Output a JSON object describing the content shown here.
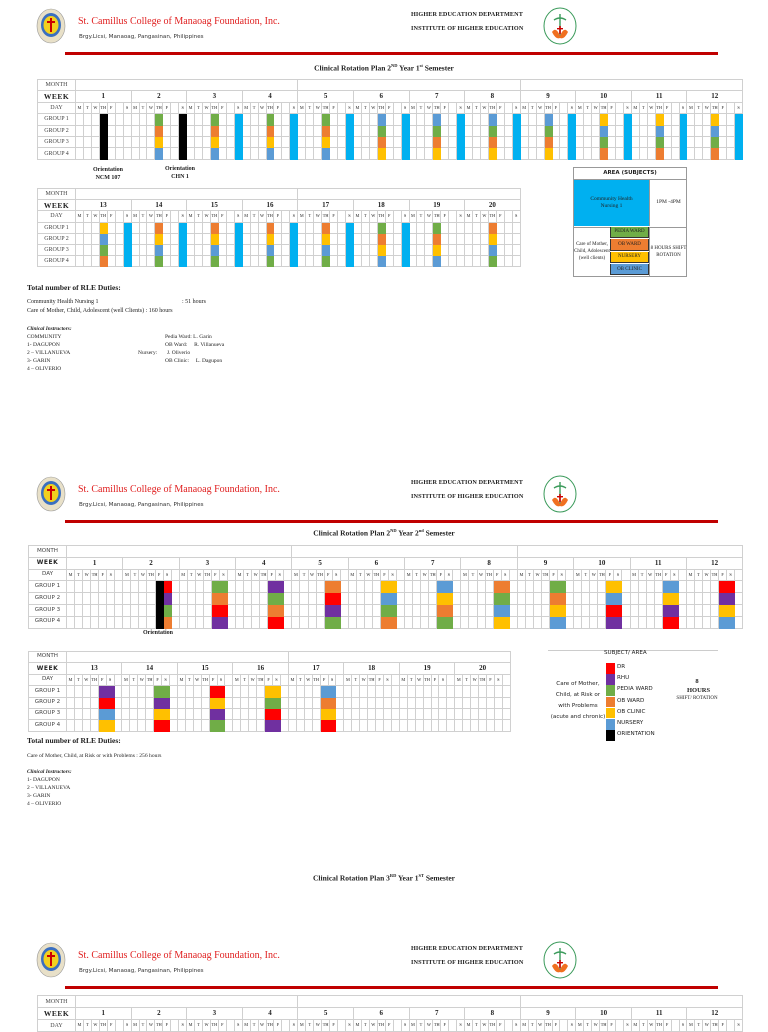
{
  "header": {
    "college_name": "St. Camillus College of Manaoag Foundation, Inc.",
    "address": "Brgy.Licsi, Manaoag, Pangasinan, Philippines",
    "department": "HIGHER EDUCATION DEPARTMENT",
    "institute": "INSTITUTE OF HIGHER EDUCATION"
  },
  "palette": {
    "r": "#ff0000",
    "p": "#7030a0",
    "g": "#70ad47",
    "o": "#ed7d31",
    "y": "#ffc000",
    "b": "#5b9bd5",
    "c": "#00b0f0",
    "k": "#000000"
  },
  "row_labels": {
    "month": "MONTH",
    "week": "WEEK",
    "day": "DAY"
  },
  "section1": {
    "title_main": "Clinical Rotation Plan 2",
    "title_sup1": "ND",
    "title_mid": " Year 1",
    "title_sup2": "st",
    "title_end": " Semester",
    "table_a": {
      "weeks": [
        "1",
        "2",
        "3",
        "4",
        "5",
        "6",
        "7",
        "8",
        "9",
        "10",
        "11",
        "12"
      ],
      "days": [
        "M",
        "T",
        "W",
        "TH",
        "F",
        "",
        "S"
      ],
      "color_days": [
        3,
        6
      ],
      "groups": [
        {
          "label": "GROUP 1",
          "cells": [
            [
              "k",
              ""
            ],
            [
              "g",
              "k"
            ],
            [
              "g",
              "c"
            ],
            [
              "g",
              "c"
            ],
            [
              "g",
              "c"
            ],
            [
              "b",
              "c"
            ],
            [
              "b",
              "c"
            ],
            [
              "b",
              "c"
            ],
            [
              "b",
              "c"
            ],
            [
              "y",
              "c"
            ],
            [
              "y",
              "c"
            ],
            [
              "y",
              "c"
            ]
          ]
        },
        {
          "label": "GROUP 2",
          "cells": [
            [
              "k",
              ""
            ],
            [
              "o",
              "k"
            ],
            [
              "o",
              "c"
            ],
            [
              "o",
              "c"
            ],
            [
              "o",
              "c"
            ],
            [
              "g",
              "c"
            ],
            [
              "g",
              "c"
            ],
            [
              "g",
              "c"
            ],
            [
              "g",
              "c"
            ],
            [
              "b",
              "c"
            ],
            [
              "b",
              "c"
            ],
            [
              "b",
              "c"
            ]
          ]
        },
        {
          "label": "GROUP 3",
          "cells": [
            [
              "k",
              ""
            ],
            [
              "y",
              "k"
            ],
            [
              "y",
              "c"
            ],
            [
              "y",
              "c"
            ],
            [
              "y",
              "c"
            ],
            [
              "o",
              "c"
            ],
            [
              "o",
              "c"
            ],
            [
              "o",
              "c"
            ],
            [
              "o",
              "c"
            ],
            [
              "g",
              "c"
            ],
            [
              "g",
              "c"
            ],
            [
              "g",
              "c"
            ]
          ]
        },
        {
          "label": "GROUP 4",
          "cells": [
            [
              "k",
              ""
            ],
            [
              "b",
              "k"
            ],
            [
              "b",
              "c"
            ],
            [
              "b",
              "c"
            ],
            [
              "b",
              "c"
            ],
            [
              "y",
              "c"
            ],
            [
              "y",
              "c"
            ],
            [
              "y",
              "c"
            ],
            [
              "y",
              "c"
            ],
            [
              "o",
              "c"
            ],
            [
              "o",
              "c"
            ],
            [
              "o",
              "c"
            ]
          ]
        }
      ]
    },
    "orientation_1": {
      "line1": "Orientation",
      "line2": "NCM 107"
    },
    "orientation_2": {
      "line1": "Orientation",
      "line2": "CHN 1"
    },
    "table_b": {
      "weeks": [
        "13",
        "14",
        "15",
        "16",
        "17",
        "18",
        "19",
        "20"
      ],
      "days": [
        "M",
        "T",
        "W",
        "TH",
        "F",
        "",
        "S"
      ],
      "color_days": [
        3,
        6
      ],
      "groups": [
        {
          "label": "GROUP 1",
          "cells": [
            [
              "y",
              "c"
            ],
            [
              "o",
              "c"
            ],
            [
              "o",
              "c"
            ],
            [
              "o",
              "c"
            ],
            [
              "o",
              "c"
            ],
            [
              "g",
              "c"
            ],
            [
              "g",
              ""
            ],
            [
              "o",
              ""
            ]
          ]
        },
        {
          "label": "GROUP 2",
          "cells": [
            [
              "b",
              "c"
            ],
            [
              "y",
              "c"
            ],
            [
              "y",
              "c"
            ],
            [
              "y",
              "c"
            ],
            [
              "y",
              "c"
            ],
            [
              "o",
              "c"
            ],
            [
              "o",
              ""
            ],
            [
              "y",
              ""
            ]
          ]
        },
        {
          "label": "GROUP 3",
          "cells": [
            [
              "g",
              "c"
            ],
            [
              "b",
              "c"
            ],
            [
              "b",
              "c"
            ],
            [
              "b",
              "c"
            ],
            [
              "b",
              "c"
            ],
            [
              "y",
              "c"
            ],
            [
              "y",
              ""
            ],
            [
              "b",
              ""
            ]
          ]
        },
        {
          "label": "GROUP 4",
          "cells": [
            [
              "o",
              "c"
            ],
            [
              "g",
              "c"
            ],
            [
              "g",
              "c"
            ],
            [
              "g",
              "c"
            ],
            [
              "g",
              "c"
            ],
            [
              "b",
              "c"
            ],
            [
              "b",
              ""
            ],
            [
              "g",
              ""
            ]
          ]
        }
      ]
    },
    "legend": {
      "header": "AREA (SUBJECTS)",
      "chn": "Community Health Nursing 1",
      "chn_time": "1PM -4PM",
      "cmca": "Care of Mother, Child, Adolescent (well clients)",
      "areas": [
        {
          "label": "PEDIA WARD",
          "color": "g"
        },
        {
          "label": "OB WARD",
          "color": "o"
        },
        {
          "label": "NURSERY",
          "color": "y"
        },
        {
          "label": "OB CLINIC",
          "color": "b"
        }
      ],
      "shift": "8 HOURS SHIFT ROTATION"
    },
    "totals_heading": "Total number of RLE Duties:",
    "totals": [
      {
        "subject": "Community Health Nursing 1",
        "hours": ": 51 hours"
      },
      {
        "subject": "Care of Mother, Child, Adolescent (well Clients)",
        "hours": ": 160 hours"
      }
    ],
    "instructors_heading": "Clinical Instructors:",
    "instructors": [
      "COMMUNITY",
      "1- DAGUPON",
      "2 – VILLANUEVA",
      "3- GARIN",
      "4 – OLIVERIO"
    ],
    "area_instructors": [
      {
        "area": "Pedia Ward:",
        "name": "L. Garin"
      },
      {
        "area": "OB Ward:",
        "name": "R. Villanueva"
      },
      {
        "area": "Nursery:",
        "name": "J. Oliverio"
      },
      {
        "area": "OB Clinic:",
        "name": "L. Dagupon"
      }
    ]
  },
  "section2": {
    "title_main": "Clinical Rotation Plan 2",
    "title_sup1": "ND",
    "title_mid": " Year 2",
    "title_sup2": "nd",
    "title_end": " Semester",
    "table_a": {
      "weeks": [
        "1",
        "2",
        "3",
        "4",
        "5",
        "6",
        "7",
        "8",
        "9",
        "10",
        "11",
        "12"
      ],
      "days": [
        "M",
        "T",
        "W",
        "TH",
        "F",
        "S",
        ""
      ],
      "color_days": [
        4,
        5
      ],
      "groups": [
        {
          "label": "GROUP 1",
          "cells": [
            [
              "",
              ""
            ],
            [
              "k",
              "r"
            ],
            [
              "g",
              "g"
            ],
            [
              "p",
              "p"
            ],
            [
              "o",
              "o"
            ],
            [
              "y",
              "y"
            ],
            [
              "b",
              "b"
            ],
            [
              "o",
              "o"
            ],
            [
              "g",
              "g"
            ],
            [
              "y",
              "y"
            ],
            [
              "b",
              "b"
            ],
            [
              "r",
              "r"
            ]
          ]
        },
        {
          "label": "GROUP 2",
          "cells": [
            [
              "",
              ""
            ],
            [
              "k",
              "p"
            ],
            [
              "o",
              "o"
            ],
            [
              "g",
              "g"
            ],
            [
              "r",
              "r"
            ],
            [
              "b",
              "b"
            ],
            [
              "y",
              "y"
            ],
            [
              "g",
              "g"
            ],
            [
              "o",
              "o"
            ],
            [
              "b",
              "b"
            ],
            [
              "y",
              "y"
            ],
            [
              "p",
              "p"
            ]
          ]
        },
        {
          "label": "GROUP 3",
          "cells": [
            [
              "",
              ""
            ],
            [
              "k",
              "g"
            ],
            [
              "r",
              "r"
            ],
            [
              "o",
              "o"
            ],
            [
              "p",
              "p"
            ],
            [
              "g",
              "g"
            ],
            [
              "o",
              "o"
            ],
            [
              "b",
              "b"
            ],
            [
              "y",
              "y"
            ],
            [
              "r",
              "r"
            ],
            [
              "p",
              "p"
            ],
            [
              "y",
              "y"
            ]
          ]
        },
        {
          "label": "GROUP 4",
          "cells": [
            [
              "",
              ""
            ],
            [
              "k",
              "o"
            ],
            [
              "p",
              "p"
            ],
            [
              "r",
              "r"
            ],
            [
              "g",
              "g"
            ],
            [
              "o",
              "o"
            ],
            [
              "g",
              "g"
            ],
            [
              "y",
              "y"
            ],
            [
              "b",
              "b"
            ],
            [
              "p",
              "p"
            ],
            [
              "r",
              "r"
            ],
            [
              "b",
              "b"
            ]
          ]
        }
      ]
    },
    "orientation": "Orientation",
    "table_b": {
      "weeks": [
        "13",
        "14",
        "15",
        "16",
        "17",
        "18",
        "19",
        "20"
      ],
      "days": [
        "M",
        "T",
        "W",
        "TH",
        "F",
        "S",
        ""
      ],
      "color_days": [
        4,
        5
      ],
      "groups": [
        {
          "label": "GROUP 1",
          "cells": [
            [
              "p",
              "p"
            ],
            [
              "g",
              "g"
            ],
            [
              "r",
              "r"
            ],
            [
              "y",
              "y"
            ],
            [
              "b",
              "b"
            ],
            [
              "",
              ""
            ],
            [
              "",
              ""
            ],
            [
              "",
              ""
            ]
          ]
        },
        {
          "label": "GROUP 2",
          "cells": [
            [
              "r",
              "r"
            ],
            [
              "p",
              "p"
            ],
            [
              "y",
              "y"
            ],
            [
              "g",
              "g"
            ],
            [
              "o",
              "o"
            ],
            [
              "",
              ""
            ],
            [
              "",
              ""
            ],
            [
              "",
              ""
            ]
          ]
        },
        {
          "label": "GROUP 3",
          "cells": [
            [
              "b",
              "b"
            ],
            [
              "y",
              "y"
            ],
            [
              "p",
              "p"
            ],
            [
              "r",
              "r"
            ],
            [
              "y",
              "y"
            ],
            [
              "",
              ""
            ],
            [
              "",
              ""
            ],
            [
              "",
              ""
            ]
          ]
        },
        {
          "label": "GROUP 4",
          "cells": [
            [
              "y",
              "y"
            ],
            [
              "r",
              "r"
            ],
            [
              "g",
              "g"
            ],
            [
              "p",
              "p"
            ],
            [
              "r",
              "r"
            ],
            [
              "",
              ""
            ],
            [
              "",
              ""
            ],
            [
              "",
              ""
            ]
          ]
        }
      ]
    },
    "legend": {
      "header": "SUBJECT/ AREA",
      "subject": "Care of Mother, Child, at Risk or with Problems (acute and chronic)",
      "areas": [
        {
          "label": "DR",
          "color": "r"
        },
        {
          "label": "RHU",
          "color": "p"
        },
        {
          "label": "PEDIA WARD",
          "color": "g"
        },
        {
          "label": "OB WARD",
          "color": "o"
        },
        {
          "label": "OB CLINIC",
          "color": "y"
        },
        {
          "label": "NURSERY",
          "color": "b"
        },
        {
          "label": "ORIENTATION",
          "color": "k"
        }
      ],
      "hours": "8 HOURS",
      "shift": "SHIFT/ ROTATION"
    },
    "totals_heading": "Total number of RLE Duties:",
    "totals_line": "Care of Mother, Child, at Risk or with Problems  : 256 hours",
    "instructors_heading": "Clinical Instructors:",
    "instructors": [
      "1- DAGUPON",
      "2 – VILLANUEVA",
      "3- GARIN",
      "4 – OLIVERIO"
    ]
  },
  "section3": {
    "title_main": "Clinical Rotation Plan 3",
    "title_sup1": "RD",
    "title_mid": " Year 1",
    "title_sup2": "ST",
    "title_end": " Semester",
    "table_a": {
      "weeks": [
        "1",
        "2",
        "3",
        "4",
        "5",
        "6",
        "7",
        "8",
        "9",
        "10",
        "11",
        "12"
      ],
      "days": [
        "M",
        "T",
        "W",
        "TH",
        "F",
        "",
        "S"
      ],
      "color_days": [],
      "groups": []
    }
  }
}
